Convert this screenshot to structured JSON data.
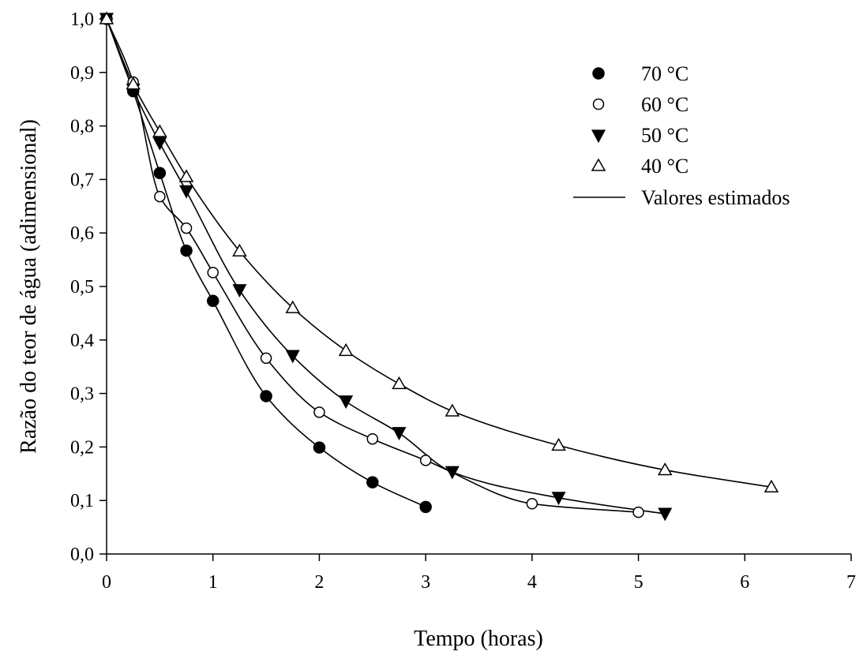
{
  "chart_data": {
    "type": "scatter",
    "xlabel": "Tempo (horas)",
    "ylabel": "Razão do teor de água (adimensional)",
    "xlim": [
      0,
      7
    ],
    "ylim": [
      0,
      1
    ],
    "x_ticks": [
      "0",
      "1",
      "2",
      "3",
      "4",
      "5",
      "6",
      "7"
    ],
    "y_ticks": [
      "0,0",
      "0,1",
      "0,2",
      "0,3",
      "0,4",
      "0,5",
      "0,6",
      "0,7",
      "0,8",
      "0,9",
      "1,0"
    ],
    "grid": false,
    "legend_position": "top-right",
    "fit_label": "Valores estimados",
    "series": [
      {
        "name": "70 °C",
        "marker": "filled-circle",
        "x": [
          0,
          0.25,
          0.5,
          0.75,
          1,
          1.5,
          2,
          2.5,
          3
        ],
        "y": [
          1.0,
          0.865,
          0.712,
          0.567,
          0.473,
          0.295,
          0.199,
          0.134,
          0.088
        ]
      },
      {
        "name": "60 °C",
        "marker": "open-circle",
        "x": [
          0,
          0.25,
          0.5,
          0.75,
          1,
          1.5,
          2,
          2.5,
          3,
          4,
          5
        ],
        "y": [
          1.0,
          0.882,
          0.668,
          0.609,
          0.526,
          0.366,
          0.265,
          0.215,
          0.175,
          0.094,
          0.078
        ]
      },
      {
        "name": "50 °C",
        "marker": "filled-triangle-down",
        "x": [
          0,
          0.25,
          0.5,
          0.75,
          1.25,
          1.75,
          2.25,
          2.75,
          3.25,
          4.25,
          5.25
        ],
        "y": [
          1.0,
          0.868,
          0.768,
          0.678,
          0.493,
          0.37,
          0.285,
          0.226,
          0.153,
          0.105,
          0.075
        ]
      },
      {
        "name": "40 °C",
        "marker": "open-triangle-up",
        "x": [
          0,
          0.25,
          0.5,
          0.75,
          1.25,
          1.75,
          2.25,
          2.75,
          3.25,
          4.25,
          5.25,
          6.25
        ],
        "y": [
          1.0,
          0.878,
          0.789,
          0.705,
          0.566,
          0.46,
          0.38,
          0.318,
          0.267,
          0.203,
          0.157,
          0.125
        ]
      }
    ]
  }
}
